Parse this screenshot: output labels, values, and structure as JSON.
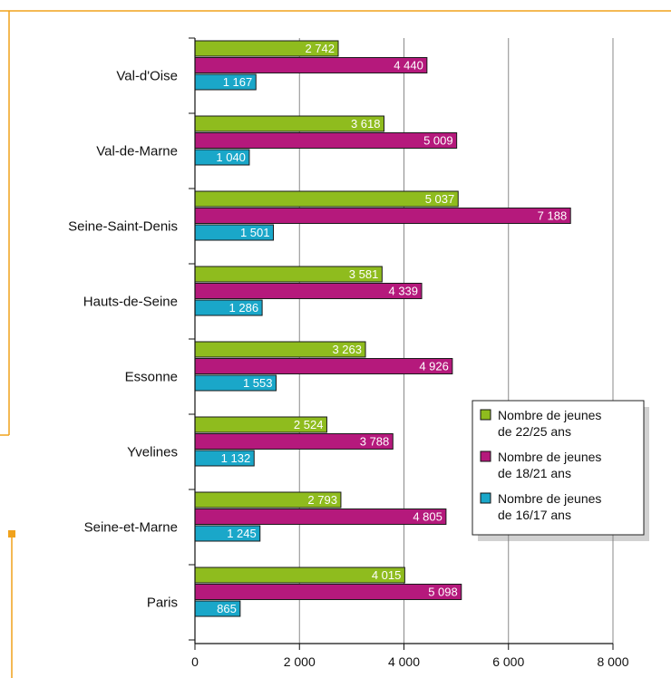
{
  "chart_data": {
    "type": "bar",
    "orientation": "horizontal",
    "categories": [
      "Val-d'Oise",
      "Val-de-Marne",
      "Seine-Saint-Denis",
      "Hauts-de-Seine",
      "Essonne",
      "Yvelines",
      "Seine-et-Marne",
      "Paris"
    ],
    "series": [
      {
        "name": "Nombre de jeunes de 22/25 ans",
        "legend_lines": [
          "Nombre de jeunes",
          "de 22/25 ans"
        ],
        "color": "#8fbc1e",
        "values": [
          2742,
          3618,
          5037,
          3581,
          3263,
          2524,
          2793,
          4015
        ],
        "labels": [
          "2 742",
          "3 618",
          "5 037",
          "3 581",
          "3 263",
          "2 524",
          "2 793",
          "4 015"
        ]
      },
      {
        "name": "Nombre de jeunes de 18/21 ans",
        "legend_lines": [
          "Nombre de jeunes",
          "de 18/21 ans"
        ],
        "color": "#b5197c",
        "values": [
          4440,
          5009,
          7188,
          4339,
          4926,
          3788,
          4805,
          5098
        ],
        "labels": [
          "4 440",
          "5 009",
          "7 188",
          "4 339",
          "4 926",
          "3 788",
          "4 805",
          "5 098"
        ]
      },
      {
        "name": "Nombre de jeunes de 16/17 ans",
        "legend_lines": [
          "Nombre de jeunes",
          "de 16/17 ans"
        ],
        "color": "#1aa7c9",
        "values": [
          1167,
          1040,
          1501,
          1286,
          1553,
          1132,
          1245,
          865
        ],
        "labels": [
          "1 167",
          "1 040",
          "1 501",
          "1 286",
          "1 553",
          "1 132",
          "1 245",
          "865"
        ]
      }
    ],
    "xlim": [
      0,
      8000
    ],
    "x_ticks": [
      0,
      2000,
      4000,
      6000,
      8000
    ],
    "x_tick_labels": [
      "0",
      "2 000",
      "4 000",
      "6 000",
      "8 000"
    ],
    "grid": "vertical",
    "legend_position": "right",
    "frame_color": "#f0a21c"
  }
}
